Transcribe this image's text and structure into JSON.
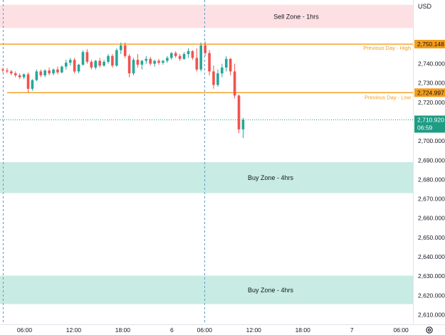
{
  "currency": "USD",
  "colors": {
    "up": "#26a69a",
    "down": "#ef5350",
    "level": "#f59c1a",
    "sell_zone": "#fde0e3",
    "buy_zone": "#c8ebe3",
    "price_tag": "#1e9c84",
    "axis_text": "#131722"
  },
  "icons": {
    "settings": "gear-icon"
  },
  "chart_data": {
    "type": "candlestick",
    "ylim": [
      2605,
      2773
    ],
    "xlim": [
      -4.5,
      71.2
    ],
    "x_unit": "hours",
    "yticks": [
      2610,
      2620,
      2630,
      2640,
      2650,
      2660,
      2670,
      2680,
      2690,
      2700,
      2710,
      2720,
      2730,
      2740
    ],
    "xticks": [
      {
        "label": "06:00",
        "x": 0
      },
      {
        "label": "12:00",
        "x": 9
      },
      {
        "label": "18:00",
        "x": 18
      },
      {
        "label": "6",
        "x": 27
      },
      {
        "label": "06:00",
        "x": 33
      },
      {
        "label": "12:00",
        "x": 42
      },
      {
        "label": "18:00",
        "x": 51
      },
      {
        "label": "7",
        "x": 60
      },
      {
        "label": "06:00",
        "x": 69
      }
    ],
    "session_breaks": [
      -4,
      33
    ],
    "zones": [
      {
        "label": "Sell Zone - 1hrs",
        "kind": "sell",
        "top": 2770.5,
        "bottom": 2758.5
      },
      {
        "label": "Buy Zone - 4hrs",
        "kind": "buy",
        "top": 2689.0,
        "bottom": 2673.0
      },
      {
        "label": "Buy Zone - 4hrs",
        "kind": "buy",
        "top": 2630.2,
        "bottom": 2615.5
      }
    ],
    "levels": [
      {
        "label": "Previous Day - High",
        "price": 2750.148,
        "tag": "2,750.148"
      },
      {
        "label": "Previous Day - Low",
        "price": 2724.997,
        "tag": "2,724.997"
      }
    ],
    "current_price": {
      "price": 2710.92,
      "tag": "2,710.920",
      "countdown": "06:59"
    },
    "ohlc": [
      [
        2737.0,
        2738.0,
        2735.5,
        2736.5
      ],
      [
        2736.5,
        2737.8,
        2735.0,
        2736.0
      ],
      [
        2736.0,
        2736.8,
        2734.0,
        2735.0
      ],
      [
        2735.0,
        2736.0,
        2733.0,
        2734.0
      ],
      [
        2734.0,
        2735.0,
        2732.0,
        2733.0
      ],
      [
        2733.0,
        2735.0,
        2732.0,
        2734.5
      ],
      [
        2734.5,
        2735.5,
        2725.0,
        2727.0
      ],
      [
        2727.0,
        2732.0,
        2726.0,
        2731.5
      ],
      [
        2731.5,
        2737.0,
        2731.0,
        2736.0
      ],
      [
        2736.0,
        2737.0,
        2733.0,
        2734.0
      ],
      [
        2734.0,
        2737.0,
        2733.0,
        2736.5
      ],
      [
        2736.5,
        2738.0,
        2734.0,
        2735.0
      ],
      [
        2735.0,
        2737.5,
        2734.0,
        2737.0
      ],
      [
        2737.0,
        2738.5,
        2734.5,
        2735.5
      ],
      [
        2735.5,
        2739.0,
        2735.0,
        2738.5
      ],
      [
        2738.5,
        2742.0,
        2737.0,
        2740.5
      ],
      [
        2740.5,
        2743.0,
        2739.0,
        2742.0
      ],
      [
        2742.0,
        2743.0,
        2735.0,
        2736.0
      ],
      [
        2736.0,
        2740.0,
        2735.0,
        2739.5
      ],
      [
        2739.5,
        2747.0,
        2739.0,
        2746.0
      ],
      [
        2746.0,
        2747.5,
        2740.0,
        2741.0
      ],
      [
        2741.0,
        2742.0,
        2737.0,
        2738.0
      ],
      [
        2738.0,
        2742.0,
        2737.0,
        2741.5
      ],
      [
        2741.5,
        2743.0,
        2738.0,
        2739.0
      ],
      [
        2739.0,
        2742.0,
        2738.5,
        2741.0
      ],
      [
        2741.0,
        2745.0,
        2740.0,
        2744.0
      ],
      [
        2744.0,
        2745.0,
        2738.0,
        2739.0
      ],
      [
        2739.0,
        2748.0,
        2738.5,
        2747.0
      ],
      [
        2747.0,
        2751.0,
        2745.0,
        2749.5
      ],
      [
        2749.5,
        2751.0,
        2743.0,
        2744.0
      ],
      [
        2744.0,
        2745.0,
        2733.0,
        2735.0
      ],
      [
        2735.0,
        2743.0,
        2734.0,
        2742.0
      ],
      [
        2742.0,
        2745.0,
        2738.0,
        2739.5
      ],
      [
        2739.5,
        2742.0,
        2737.0,
        2741.5
      ],
      [
        2741.5,
        2744.0,
        2740.0,
        2742.5
      ],
      [
        2742.5,
        2743.5,
        2739.0,
        2740.0
      ],
      [
        2740.0,
        2742.0,
        2738.5,
        2741.5
      ],
      [
        2741.5,
        2742.5,
        2739.5,
        2740.5
      ],
      [
        2740.5,
        2742.0,
        2739.5,
        2741.5
      ],
      [
        2741.5,
        2744.0,
        2740.5,
        2743.0
      ],
      [
        2743.0,
        2746.0,
        2742.0,
        2745.5
      ],
      [
        2745.5,
        2746.5,
        2743.0,
        2744.0
      ],
      [
        2744.0,
        2745.0,
        2741.5,
        2742.5
      ],
      [
        2742.5,
        2746.0,
        2742.0,
        2745.0
      ],
      [
        2745.0,
        2748.0,
        2743.0,
        2746.5
      ],
      [
        2746.5,
        2747.0,
        2742.0,
        2743.0
      ],
      [
        2743.0,
        2748.0,
        2736.0,
        2737.0
      ],
      [
        2737.0,
        2751.0,
        2736.0,
        2749.5
      ],
      [
        2749.5,
        2751.5,
        2744.0,
        2745.5
      ],
      [
        2745.5,
        2747.0,
        2734.0,
        2736.0
      ],
      [
        2736.0,
        2739.0,
        2727.0,
        2729.0
      ],
      [
        2729.0,
        2737.0,
        2728.0,
        2735.0
      ],
      [
        2735.0,
        2740.0,
        2733.0,
        2738.0
      ],
      [
        2738.0,
        2744.0,
        2736.0,
        2742.5
      ],
      [
        2742.5,
        2743.0,
        2734.0,
        2736.0
      ],
      [
        2736.0,
        2740.0,
        2722.0,
        2723.5
      ],
      [
        2723.5,
        2724.0,
        2704.0,
        2706.0
      ],
      [
        2706.0,
        2712.0,
        2701.5,
        2710.9
      ]
    ]
  }
}
